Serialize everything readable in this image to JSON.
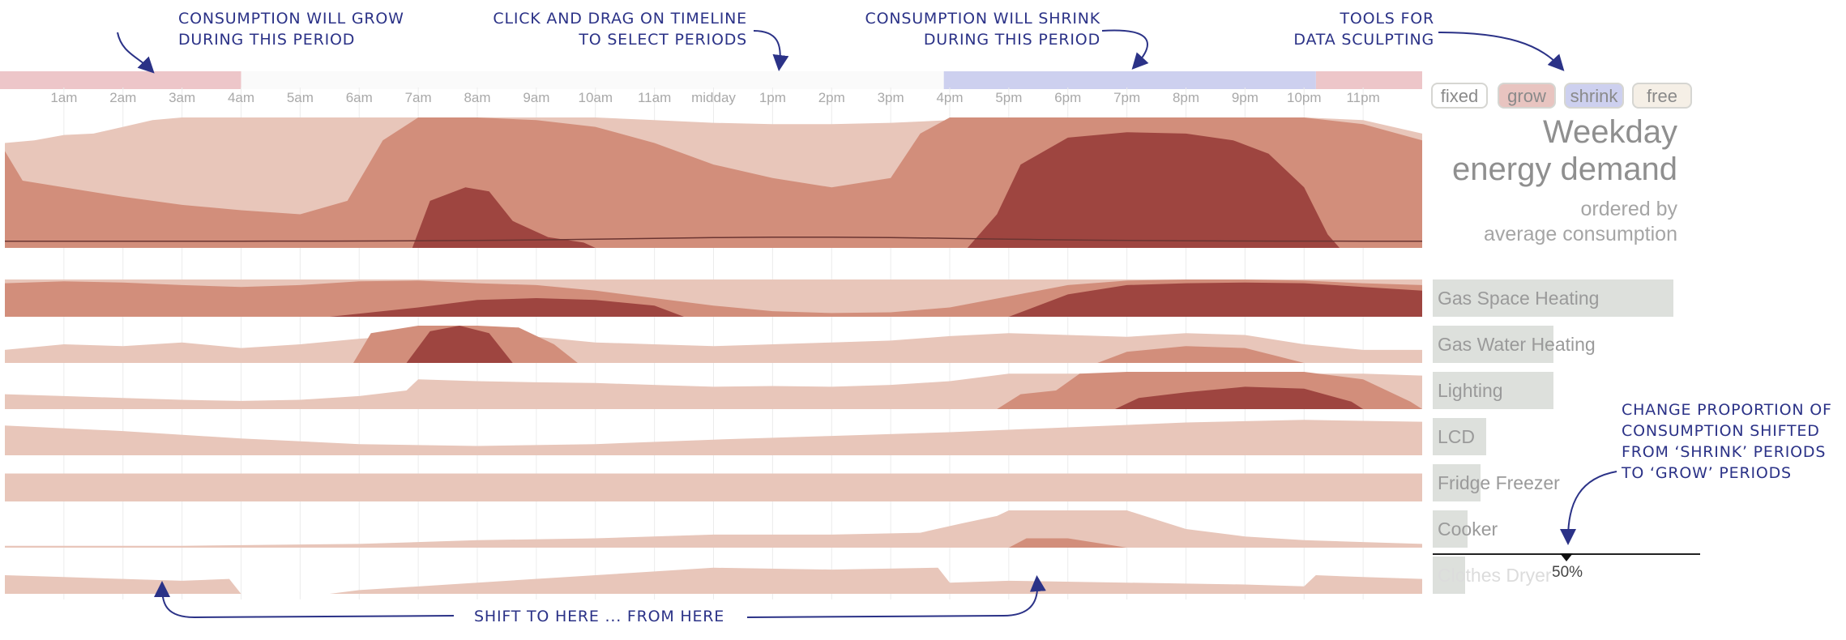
{
  "annotations": {
    "grow_period": [
      "CONSUMPTION WILL GROW",
      "DURING THIS PERIOD"
    ],
    "drag_timeline": [
      "CLICK AND DRAG ON TIMELINE",
      "TO SELECT PERIODS"
    ],
    "shrink_period": [
      "CONSUMPTION WILL SHRINK",
      "DURING THIS PERIOD"
    ],
    "tools": [
      "TOOLS FOR",
      "DATA SCULPTING"
    ],
    "proportion": [
      "CHANGE PROPORTION OF",
      "CONSUMPTION SHIFTED",
      "FROM ‘SHRINK’ PERIODS",
      "TO ‘GROW’ PERIODS"
    ],
    "shift": "SHIFT TO HERE ... FROM HERE"
  },
  "tools": [
    {
      "label": "fixed",
      "color": "#ffffff"
    },
    {
      "label": "grow",
      "color": "#e8c4c0"
    },
    {
      "label": "shrink",
      "color": "#cdd0ef"
    },
    {
      "label": "free",
      "color": "#f5efe6"
    }
  ],
  "colors": {
    "light": "#e8c6ba",
    "mid": "#d28e7b",
    "dark": "#9e4540",
    "grow_band": "#edc6c9",
    "shrink_band": "#cdd0ef",
    "label_bar": "#dde0dc",
    "annotation": "#2b3287"
  },
  "panel": {
    "title": [
      "Weekday",
      "energy demand"
    ],
    "subtitle": [
      "ordered by",
      "average consumption"
    ]
  },
  "slider": {
    "value_label": "50%",
    "value": 0.5
  },
  "chart_data": {
    "type": "area",
    "x_ticks": [
      "1am",
      "2am",
      "3am",
      "4am",
      "5am",
      "6am",
      "7am",
      "8am",
      "9am",
      "10am",
      "11am",
      "midday",
      "1pm",
      "2pm",
      "3pm",
      "4pm",
      "5pm",
      "6pm",
      "7pm",
      "8pm",
      "9pm",
      "10pm",
      "11pm"
    ],
    "x_range_hours": [
      0,
      24
    ],
    "grow_periods": [
      [
        0,
        4
      ],
      [
        22.2,
        24
      ]
    ],
    "shrink_periods": [
      [
        15.9,
        22.2
      ]
    ],
    "total": {
      "light": [
        [
          0,
          0.78
        ],
        [
          0.5,
          0.8
        ],
        [
          1,
          0.84
        ],
        [
          1.5,
          0.85
        ],
        [
          2,
          0.9
        ],
        [
          2.5,
          0.95
        ],
        [
          3,
          0.97
        ],
        [
          4,
          0.97
        ],
        [
          5,
          0.97
        ],
        [
          6,
          0.97
        ],
        [
          7,
          0.97
        ],
        [
          8,
          0.97
        ],
        [
          9,
          0.97
        ],
        [
          10,
          0.97
        ],
        [
          11,
          0.95
        ],
        [
          12,
          0.93
        ],
        [
          13,
          0.92
        ],
        [
          14,
          0.92
        ],
        [
          15,
          0.93
        ],
        [
          16,
          0.95
        ],
        [
          17,
          0.97
        ],
        [
          18,
          0.97
        ],
        [
          19,
          0.97
        ],
        [
          20,
          0.97
        ],
        [
          21,
          0.97
        ],
        [
          22,
          0.97
        ],
        [
          23,
          0.95
        ],
        [
          24,
          0.85
        ]
      ],
      "mid": [
        [
          0,
          0.72
        ],
        [
          0.3,
          0.5
        ],
        [
          1,
          0.45
        ],
        [
          2,
          0.38
        ],
        [
          3,
          0.32
        ],
        [
          4,
          0.28
        ],
        [
          5,
          0.25
        ],
        [
          5.8,
          0.35
        ],
        [
          6.4,
          0.8
        ],
        [
          7,
          0.97
        ],
        [
          8,
          0.97
        ],
        [
          9,
          0.95
        ],
        [
          10,
          0.9
        ],
        [
          11,
          0.78
        ],
        [
          12,
          0.62
        ],
        [
          13,
          0.52
        ],
        [
          14,
          0.45
        ],
        [
          15,
          0.52
        ],
        [
          15.5,
          0.85
        ],
        [
          16,
          0.97
        ],
        [
          17,
          0.97
        ],
        [
          18,
          0.97
        ],
        [
          19,
          0.97
        ],
        [
          20,
          0.97
        ],
        [
          21,
          0.97
        ],
        [
          22,
          0.97
        ],
        [
          23,
          0.92
        ],
        [
          24,
          0.8
        ]
      ],
      "dark": [
        [
          6.9,
          0
        ],
        [
          7.2,
          0.35
        ],
        [
          7.8,
          0.45
        ],
        [
          8.2,
          0.42
        ],
        [
          8.6,
          0.2
        ],
        [
          9.2,
          0.08
        ],
        [
          9.8,
          0.04
        ],
        [
          10,
          0
        ],
        [
          16.3,
          0
        ],
        [
          16.8,
          0.25
        ],
        [
          17.2,
          0.62
        ],
        [
          18,
          0.82
        ],
        [
          19,
          0.86
        ],
        [
          20,
          0.85
        ],
        [
          20.8,
          0.8
        ],
        [
          21.4,
          0.7
        ],
        [
          22,
          0.45
        ],
        [
          22.4,
          0.1
        ],
        [
          22.6,
          0
        ]
      ]
    },
    "rows": [
      {
        "label": "Gas Space Heating",
        "avg_share": 0.9,
        "light": [
          [
            0,
            1
          ],
          [
            24,
            1
          ]
        ],
        "mid": [
          [
            0,
            0.9
          ],
          [
            1,
            0.95
          ],
          [
            2,
            0.92
          ],
          [
            3,
            0.85
          ],
          [
            4,
            0.8
          ],
          [
            5,
            0.85
          ],
          [
            6,
            0.95
          ],
          [
            7,
            0.97
          ],
          [
            8,
            0.9
          ],
          [
            9,
            0.85
          ],
          [
            10,
            0.7
          ],
          [
            11,
            0.5
          ],
          [
            12,
            0.3
          ],
          [
            13,
            0.15
          ],
          [
            14,
            0.1
          ],
          [
            15,
            0.12
          ],
          [
            16,
            0.25
          ],
          [
            17,
            0.55
          ],
          [
            18,
            0.85
          ],
          [
            19,
            0.97
          ],
          [
            20,
            1
          ],
          [
            21,
            1
          ],
          [
            22,
            0.97
          ],
          [
            23,
            0.9
          ],
          [
            24,
            0.85
          ]
        ],
        "dark": [
          [
            5.5,
            0
          ],
          [
            7,
            0.25
          ],
          [
            8,
            0.45
          ],
          [
            9,
            0.5
          ],
          [
            10,
            0.45
          ],
          [
            11,
            0.3
          ],
          [
            11.5,
            0
          ],
          [
            17,
            0
          ],
          [
            18,
            0.6
          ],
          [
            19,
            0.85
          ],
          [
            20,
            0.9
          ],
          [
            21,
            0.92
          ],
          [
            22,
            0.9
          ],
          [
            23,
            0.8
          ],
          [
            24,
            0.7
          ]
        ]
      },
      {
        "label": "Gas Water Heating",
        "avg_share": 0.45,
        "light": [
          [
            0,
            0.35
          ],
          [
            1,
            0.5
          ],
          [
            2,
            0.45
          ],
          [
            3,
            0.55
          ],
          [
            4,
            0.4
          ],
          [
            5,
            0.5
          ],
          [
            6,
            0.65
          ],
          [
            7,
            0.75
          ],
          [
            8,
            0.8
          ],
          [
            9,
            0.7
          ],
          [
            10,
            0.55
          ],
          [
            11,
            0.5
          ],
          [
            12,
            0.45
          ],
          [
            13,
            0.5
          ],
          [
            14,
            0.55
          ],
          [
            15,
            0.6
          ],
          [
            16,
            0.72
          ],
          [
            17,
            0.8
          ],
          [
            18,
            0.75
          ],
          [
            19,
            0.7
          ],
          [
            20,
            0.8
          ],
          [
            21,
            0.75
          ],
          [
            22,
            0.5
          ],
          [
            23,
            0.35
          ],
          [
            24,
            0.35
          ]
        ],
        "mid": [
          [
            5.9,
            0
          ],
          [
            6.2,
            0.8
          ],
          [
            7,
            1
          ],
          [
            8,
            1
          ],
          [
            8.7,
            0.95
          ],
          [
            9.3,
            0.5
          ],
          [
            9.7,
            0
          ],
          [
            18.5,
            0
          ],
          [
            19,
            0.3
          ],
          [
            20,
            0.45
          ],
          [
            21,
            0.4
          ],
          [
            21.5,
            0.2
          ],
          [
            22,
            0
          ]
        ],
        "dark": [
          [
            6.8,
            0
          ],
          [
            7.2,
            0.85
          ],
          [
            7.7,
            1
          ],
          [
            8.2,
            0.8
          ],
          [
            8.6,
            0
          ]
        ]
      },
      {
        "label": "Lighting",
        "avg_share": 0.45,
        "light": [
          [
            0,
            0.4
          ],
          [
            1,
            0.35
          ],
          [
            2,
            0.3
          ],
          [
            3,
            0.25
          ],
          [
            4,
            0.22
          ],
          [
            5,
            0.25
          ],
          [
            6,
            0.35
          ],
          [
            6.8,
            0.5
          ],
          [
            7,
            0.8
          ],
          [
            8,
            0.75
          ],
          [
            9,
            0.72
          ],
          [
            10,
            0.7
          ],
          [
            11,
            0.65
          ],
          [
            12,
            0.6
          ],
          [
            13,
            0.62
          ],
          [
            14,
            0.6
          ],
          [
            15,
            0.65
          ],
          [
            16,
            0.75
          ],
          [
            17,
            0.95
          ],
          [
            18,
            0.95
          ],
          [
            19,
            0.95
          ],
          [
            20,
            0.95
          ],
          [
            21,
            0.95
          ],
          [
            22,
            0.95
          ],
          [
            23,
            0.95
          ],
          [
            24,
            0.9
          ]
        ],
        "mid": [
          [
            16.8,
            0
          ],
          [
            17.2,
            0.4
          ],
          [
            17.8,
            0.5
          ],
          [
            18.2,
            0.95
          ],
          [
            19,
            1
          ],
          [
            20,
            1
          ],
          [
            21,
            1
          ],
          [
            22,
            1
          ],
          [
            23,
            0.8
          ],
          [
            23.8,
            0.2
          ],
          [
            24,
            0
          ]
        ],
        "dark": [
          [
            18.8,
            0
          ],
          [
            19.2,
            0.3
          ],
          [
            20,
            0.45
          ],
          [
            21,
            0.6
          ],
          [
            22,
            0.55
          ],
          [
            22.8,
            0.2
          ],
          [
            23,
            0
          ]
        ]
      },
      {
        "label": "LCD",
        "avg_share": 0.2,
        "light": [
          [
            0,
            0.8
          ],
          [
            2,
            0.65
          ],
          [
            4,
            0.45
          ],
          [
            6,
            0.3
          ],
          [
            8,
            0.25
          ],
          [
            10,
            0.3
          ],
          [
            12,
            0.42
          ],
          [
            14,
            0.52
          ],
          [
            16,
            0.62
          ],
          [
            18,
            0.75
          ],
          [
            20,
            0.88
          ],
          [
            22,
            0.95
          ],
          [
            24,
            0.9
          ]
        ]
      },
      {
        "label": "Fridge Freezer",
        "avg_share": 0.18,
        "light": [
          [
            0,
            0.75
          ],
          [
            24,
            0.75
          ]
        ]
      },
      {
        "label": "Cooker",
        "avg_share": 0.13,
        "light": [
          [
            0,
            0.05
          ],
          [
            3,
            0.05
          ],
          [
            6,
            0.1
          ],
          [
            8,
            0.2
          ],
          [
            10,
            0.25
          ],
          [
            12,
            0.35
          ],
          [
            14,
            0.35
          ],
          [
            15.5,
            0.4
          ],
          [
            16.2,
            0.65
          ],
          [
            16.8,
            0.85
          ],
          [
            17,
            1
          ],
          [
            18,
            1
          ],
          [
            19,
            1
          ],
          [
            20,
            0.5
          ],
          [
            21,
            0.3
          ],
          [
            22,
            0.2
          ],
          [
            23,
            0.15
          ],
          [
            24,
            0.1
          ]
        ],
        "mid": [
          [
            17,
            0
          ],
          [
            17.3,
            0.25
          ],
          [
            18,
            0.25
          ],
          [
            18.6,
            0.1
          ],
          [
            19,
            0
          ]
        ]
      },
      {
        "label": "Clothes Dryer",
        "avg_share": 0.12,
        "light": [
          [
            0,
            0.5
          ],
          [
            1,
            0.45
          ],
          [
            2,
            0.4
          ],
          [
            3,
            0.35
          ],
          [
            3.8,
            0.4
          ],
          [
            4,
            0
          ],
          [
            5.5,
            0
          ],
          [
            6,
            0.1
          ],
          [
            8,
            0.3
          ],
          [
            10,
            0.5
          ],
          [
            12,
            0.7
          ],
          [
            14,
            0.65
          ],
          [
            15.8,
            0.7
          ],
          [
            16,
            0.3
          ],
          [
            17,
            0.35
          ],
          [
            19,
            0.3
          ],
          [
            21,
            0.25
          ],
          [
            22,
            0.2
          ],
          [
            22.2,
            0.5
          ],
          [
            23,
            0.45
          ],
          [
            24,
            0.4
          ]
        ]
      }
    ]
  }
}
